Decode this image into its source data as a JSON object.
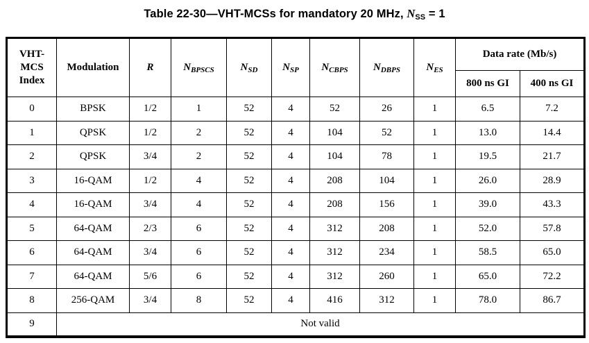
{
  "title": {
    "prefix": "Table 22-30—VHT-MCSs for mandatory 20 MHz, ",
    "var_base": "N",
    "var_sub": "SS",
    "suffix": " = 1"
  },
  "table": {
    "columns": [
      {
        "id": "vht-mcs-index",
        "label": "VHT-\nMCS\nIndex"
      },
      {
        "id": "modulation",
        "label": "Modulation"
      },
      {
        "id": "r",
        "label": "R",
        "style": "bold-italic"
      },
      {
        "id": "n-bpscs",
        "base": "N",
        "sub": "BPSCS"
      },
      {
        "id": "n-sd",
        "base": "N",
        "sub": "SD"
      },
      {
        "id": "n-sp",
        "base": "N",
        "sub": "SP"
      },
      {
        "id": "n-cbps",
        "base": "N",
        "sub": "CBPS"
      },
      {
        "id": "n-dbps",
        "base": "N",
        "sub": "DBPS"
      },
      {
        "id": "n-es",
        "base": "N",
        "sub": "ES"
      }
    ],
    "data_rate_group": {
      "label": "Data rate (Mb/s)",
      "sub_columns": [
        {
          "id": "gi-800",
          "label": "800 ns GI"
        },
        {
          "id": "gi-400",
          "label": "400 ns GI"
        }
      ]
    },
    "rows": [
      {
        "cells": [
          "0",
          "BPSK",
          "1/2",
          "1",
          "52",
          "4",
          "52",
          "26",
          "1",
          "6.5",
          "7.2"
        ]
      },
      {
        "cells": [
          "1",
          "QPSK",
          "1/2",
          "2",
          "52",
          "4",
          "104",
          "52",
          "1",
          "13.0",
          "14.4"
        ]
      },
      {
        "cells": [
          "2",
          "QPSK",
          "3/4",
          "2",
          "52",
          "4",
          "104",
          "78",
          "1",
          "19.5",
          "21.7"
        ]
      },
      {
        "cells": [
          "3",
          "16-QAM",
          "1/2",
          "4",
          "52",
          "4",
          "208",
          "104",
          "1",
          "26.0",
          "28.9"
        ]
      },
      {
        "cells": [
          "4",
          "16-QAM",
          "3/4",
          "4",
          "52",
          "4",
          "208",
          "156",
          "1",
          "39.0",
          "43.3"
        ]
      },
      {
        "cells": [
          "5",
          "64-QAM",
          "2/3",
          "6",
          "52",
          "4",
          "312",
          "208",
          "1",
          "52.0",
          "57.8"
        ]
      },
      {
        "cells": [
          "6",
          "64-QAM",
          "3/4",
          "6",
          "52",
          "4",
          "312",
          "234",
          "1",
          "58.5",
          "65.0"
        ]
      },
      {
        "cells": [
          "7",
          "64-QAM",
          "5/6",
          "6",
          "52",
          "4",
          "312",
          "260",
          "1",
          "65.0",
          "72.2"
        ]
      },
      {
        "cells": [
          "8",
          "256-QAM",
          "3/4",
          "8",
          "52",
          "4",
          "416",
          "312",
          "1",
          "78.0",
          "86.7"
        ]
      },
      {
        "cells": [
          "9"
        ],
        "merged": "Not valid"
      }
    ]
  },
  "colors": {
    "text": "#000000",
    "background": "#ffffff",
    "border": "#000000"
  }
}
